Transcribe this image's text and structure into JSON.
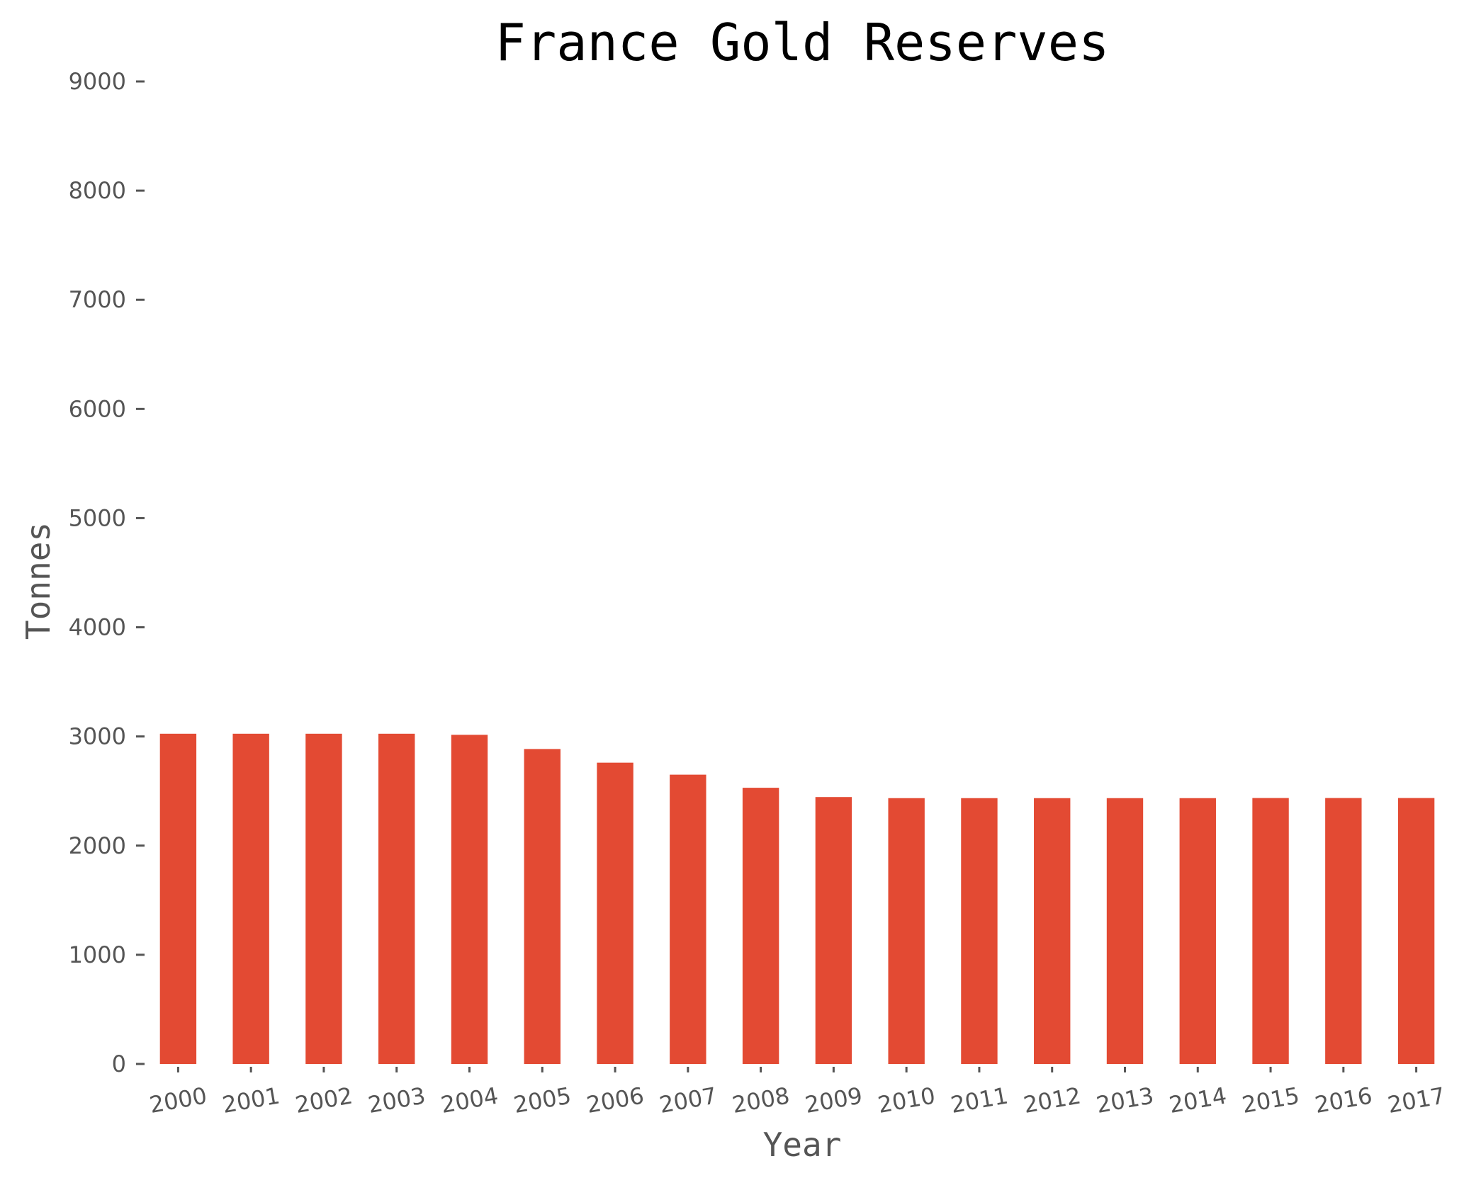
{
  "chart_data": {
    "type": "bar",
    "title": "France Gold Reserves",
    "xlabel": "Year",
    "ylabel": "Tonnes",
    "ylim": [
      0,
      9000
    ],
    "yticks": [
      "0",
      "1000",
      "2000",
      "3000",
      "4000",
      "5000",
      "6000",
      "7000",
      "8000",
      "9000"
    ],
    "categories": [
      "2000",
      "2001",
      "2002",
      "2003",
      "2004",
      "2005",
      "2006",
      "2007",
      "2008",
      "2009",
      "2010",
      "2011",
      "2012",
      "2013",
      "2014",
      "2015",
      "2016",
      "2017"
    ],
    "values": [
      3025,
      3025,
      3025,
      3025,
      3015,
      2885,
      2760,
      2650,
      2530,
      2445,
      2435,
      2435,
      2435,
      2435,
      2435,
      2436,
      2436,
      2436
    ],
    "bar_color": "#e34a33",
    "grid": false,
    "legend": "none"
  }
}
